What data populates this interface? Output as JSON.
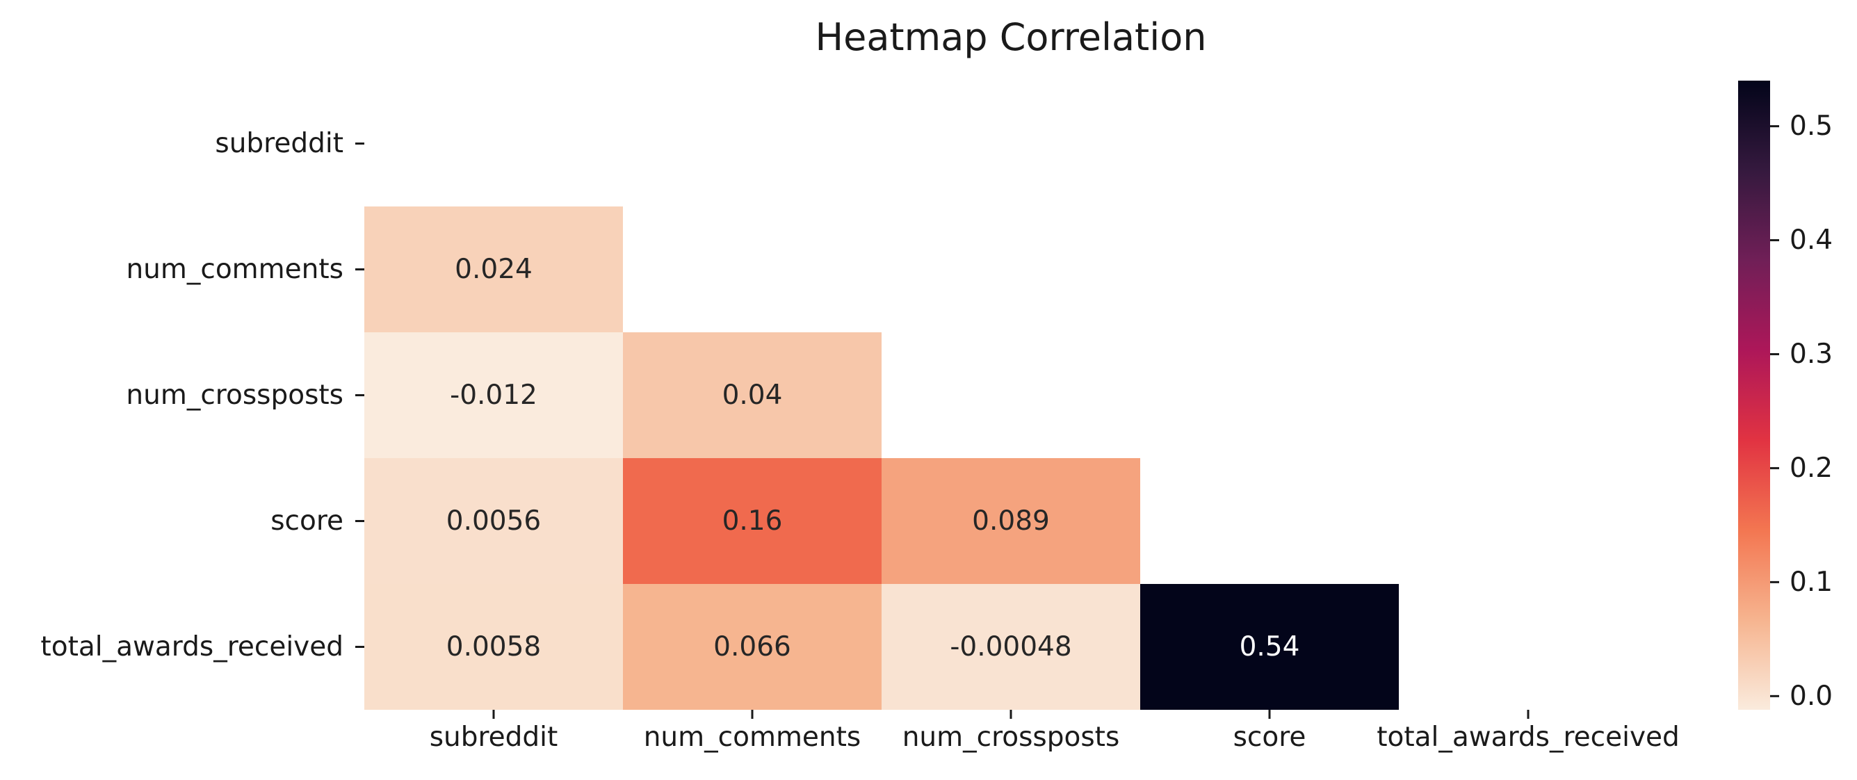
{
  "chart_data": {
    "type": "heatmap",
    "title": "Heatmap Correlation",
    "xlabel": "",
    "ylabel": "",
    "x_categories": [
      "subreddit",
      "num_comments",
      "num_crossposts",
      "score",
      "total_awards_received"
    ],
    "y_categories": [
      "subreddit",
      "num_comments",
      "num_crossposts",
      "score",
      "total_awards_received"
    ],
    "mask": "upper-triangle-including-diagonal",
    "cells": [
      {
        "row": "num_comments",
        "col": "subreddit",
        "value": 0.024,
        "label": "0.024"
      },
      {
        "row": "num_crossposts",
        "col": "subreddit",
        "value": -0.012,
        "label": "-0.012"
      },
      {
        "row": "num_crossposts",
        "col": "num_comments",
        "value": 0.04,
        "label": "0.04"
      },
      {
        "row": "score",
        "col": "subreddit",
        "value": 0.0056,
        "label": "0.0056"
      },
      {
        "row": "score",
        "col": "num_comments",
        "value": 0.16,
        "label": "0.16"
      },
      {
        "row": "score",
        "col": "num_crossposts",
        "value": 0.089,
        "label": "0.089"
      },
      {
        "row": "total_awards_received",
        "col": "subreddit",
        "value": 0.0058,
        "label": "0.0058"
      },
      {
        "row": "total_awards_received",
        "col": "num_comments",
        "value": 0.066,
        "label": "0.066"
      },
      {
        "row": "total_awards_received",
        "col": "num_crossposts",
        "value": -0.00048,
        "label": "-0.00048"
      },
      {
        "row": "total_awards_received",
        "col": "score",
        "value": 0.54,
        "label": "0.54"
      }
    ],
    "colorbar": {
      "range": [
        -0.012,
        0.54
      ],
      "ticks": [
        0.0,
        0.1,
        0.2,
        0.3,
        0.4,
        0.5
      ],
      "tick_labels": [
        "0.0",
        "0.1",
        "0.2",
        "0.3",
        "0.4",
        "0.5"
      ],
      "colormap": "rocket_r",
      "colors": [
        "#faebdd",
        "#f6b48f",
        "#f37651",
        "#e13342",
        "#ad1759",
        "#701f57",
        "#35193e",
        "#03051a"
      ]
    },
    "grid": false,
    "legend": "colorbar-right"
  }
}
